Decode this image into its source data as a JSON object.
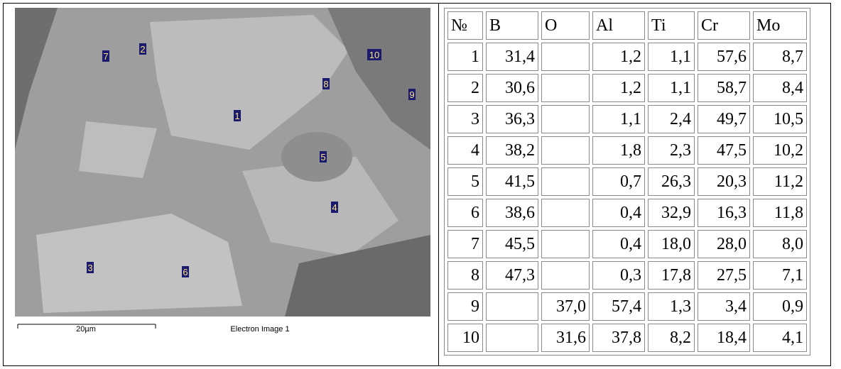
{
  "image": {
    "scale_bar": "20µm",
    "caption": "Electron Image 1",
    "markers": [
      "1",
      "2",
      "3",
      "4",
      "5",
      "6",
      "7",
      "8",
      "9",
      "10"
    ]
  },
  "table": {
    "header": [
      "№",
      "B",
      "O",
      "Al",
      "Ti",
      "Cr",
      "Mo"
    ],
    "rows": [
      [
        "1",
        "31,4",
        null,
        "1,2",
        "1,1",
        "57,6",
        "8,7"
      ],
      [
        "2",
        "30,6",
        null,
        "1,2",
        "1,1",
        "58,7",
        "8,4"
      ],
      [
        "3",
        "36,3",
        null,
        "1,1",
        "2,4",
        "49,7",
        "10,5"
      ],
      [
        "4",
        "38,2",
        null,
        "1,8",
        "2,3",
        "47,5",
        "10,2"
      ],
      [
        "5",
        "41,5",
        null,
        "0,7",
        "26,3",
        "20,3",
        "11,2"
      ],
      [
        "6",
        "38,6",
        null,
        "0,4",
        "32,9",
        "16,3",
        "11,8"
      ],
      [
        "7",
        "45,5",
        null,
        "0,4",
        "18,0",
        "28,0",
        "8,0"
      ],
      [
        "8",
        "47,3",
        null,
        "0,3",
        "17,8",
        "27,5",
        "7,1"
      ],
      [
        "9",
        null,
        "37,0",
        "57,4",
        "1,3",
        "3,4",
        "0,9"
      ],
      [
        "10",
        null,
        "31,6",
        "37,8",
        "8,2",
        "18,4",
        "4,1"
      ]
    ]
  }
}
